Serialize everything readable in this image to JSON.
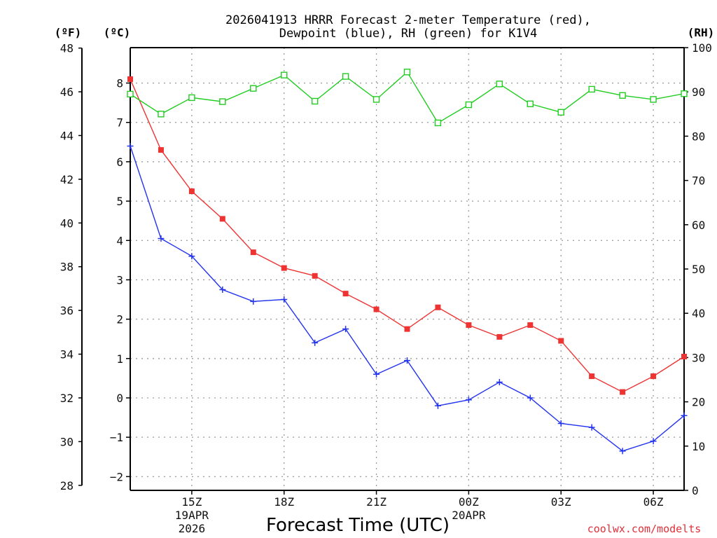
{
  "chart_data": {
    "type": "line",
    "title_lines": [
      "2026041913 HRRR Forecast 2-meter Temperature (red),",
      "Dewpoint (blue), RH (green) for K1V4"
    ],
    "xlabel": "Forecast Time (UTC)",
    "credit": "coolwx.com/modelts",
    "x_hours": [
      13,
      14,
      15,
      16,
      17,
      18,
      19,
      20,
      21,
      22,
      23,
      24,
      25,
      26,
      27,
      28,
      29,
      30,
      31
    ],
    "x_range": [
      13,
      31
    ],
    "x_ticks": [
      {
        "hour": 15,
        "label": "15Z",
        "sub1": "19APR",
        "sub2": "2026"
      },
      {
        "hour": 18,
        "label": "18Z"
      },
      {
        "hour": 21,
        "label": "21Z"
      },
      {
        "hour": 24,
        "label": "00Z",
        "sub1": "20APR"
      },
      {
        "hour": 27,
        "label": "03Z"
      },
      {
        "hour": 30,
        "label": "06Z"
      }
    ],
    "axes": {
      "celsius": {
        "unit_label": "(ºC)",
        "range": [
          -2.35,
          8.9
        ],
        "ticks": [
          -2,
          -1,
          0,
          1,
          2,
          3,
          4,
          5,
          6,
          7,
          8
        ]
      },
      "fahrenheit": {
        "unit_label": "(ºF)",
        "ticks": [
          28,
          30,
          32,
          34,
          36,
          38,
          40,
          42,
          44,
          46,
          48
        ]
      },
      "rh": {
        "unit_label": "(RH)",
        "range": [
          0,
          100
        ],
        "ticks": [
          0,
          10,
          20,
          30,
          40,
          50,
          60,
          70,
          80,
          90,
          100
        ]
      }
    },
    "series": [
      {
        "name": "2-meter Temperature",
        "color": "#ee3333",
        "marker": "filled-square",
        "axis": "celsius",
        "values": [
          8.1,
          6.3,
          5.25,
          4.55,
          3.7,
          3.3,
          3.1,
          2.65,
          2.25,
          1.75,
          2.3,
          1.85,
          1.55,
          1.85,
          1.45,
          0.55,
          0.15,
          0.55,
          1.05
        ]
      },
      {
        "name": "Dewpoint",
        "color": "#2233ee",
        "marker": "plus",
        "axis": "celsius",
        "values": [
          6.4,
          4.05,
          3.6,
          2.75,
          2.45,
          2.5,
          1.4,
          1.75,
          0.6,
          0.95,
          -0.2,
          -0.05,
          0.4,
          0.0,
          -0.65,
          -0.75,
          -1.35,
          -1.1,
          -0.45
        ]
      },
      {
        "name": "RH",
        "color": "#22cc22",
        "marker": "open-square",
        "axis": "rh",
        "values": [
          89.5,
          85.0,
          88.7,
          87.8,
          90.8,
          93.8,
          87.9,
          93.5,
          88.3,
          94.5,
          83.0,
          87.1,
          91.8,
          87.3,
          85.4,
          90.6,
          89.2,
          88.3,
          89.6
        ]
      }
    ]
  }
}
